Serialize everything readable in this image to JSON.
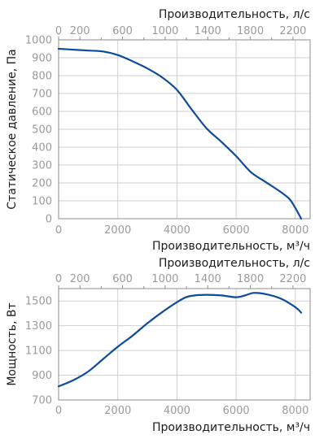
{
  "colors": {
    "line": "#0d4b9b",
    "grid": "#cfcfcf",
    "frame": "#8c8c8c",
    "tick_text": "#9a9a9a"
  },
  "chart_data": [
    {
      "type": "line",
      "xlabel": "Производительность, м³/ч",
      "ylabel": "Статическое давление, Па",
      "top_xlabel": "Производительность, л/с",
      "xlim": [
        0,
        8500
      ],
      "ylim": [
        0,
        1000
      ],
      "xticks": [
        0,
        2000,
        4000,
        6000,
        8000
      ],
      "yticks": [
        0,
        100,
        200,
        300,
        400,
        500,
        600,
        700,
        800,
        900,
        1000
      ],
      "top_xticks": [
        0,
        200,
        600,
        1000,
        1400,
        1800,
        2200
      ],
      "top_xticks_minor": [
        400,
        800,
        1200,
        1600,
        2000
      ],
      "grid": true,
      "series": [
        {
          "x": [
            0,
            500,
            1000,
            1500,
            2000,
            2500,
            3000,
            3500,
            4000,
            4500,
            5000,
            5500,
            6000,
            6500,
            7000,
            7500,
            7800,
            8000,
            8200
          ],
          "y": [
            950,
            945,
            940,
            935,
            915,
            880,
            840,
            790,
            720,
            610,
            505,
            430,
            350,
            260,
            205,
            150,
            110,
            60,
            0
          ]
        }
      ]
    },
    {
      "type": "line",
      "xlabel": "Производительность, м³/ч",
      "ylabel": "Мощность, Вт",
      "top_xlabel": "Производительность, л/с",
      "xlim": [
        0,
        8500
      ],
      "ylim": [
        700,
        1600
      ],
      "xticks": [
        0,
        2000,
        4000,
        6000,
        8000
      ],
      "yticks": [
        700,
        900,
        1100,
        1300,
        1500
      ],
      "top_xticks": [
        0,
        200,
        600,
        1000,
        1400,
        1800,
        2200
      ],
      "top_xticks_minor": [
        400,
        800,
        1200,
        1600,
        2000
      ],
      "grid": true,
      "series": [
        {
          "x": [
            0,
            500,
            1000,
            1500,
            2000,
            2500,
            3000,
            3500,
            4000,
            4300,
            4600,
            5000,
            5500,
            6000,
            6300,
            6600,
            7000,
            7500,
            8000,
            8200
          ],
          "y": [
            810,
            860,
            930,
            1030,
            1130,
            1220,
            1320,
            1410,
            1490,
            1530,
            1545,
            1550,
            1545,
            1530,
            1545,
            1565,
            1555,
            1520,
            1450,
            1405
          ]
        }
      ]
    }
  ]
}
